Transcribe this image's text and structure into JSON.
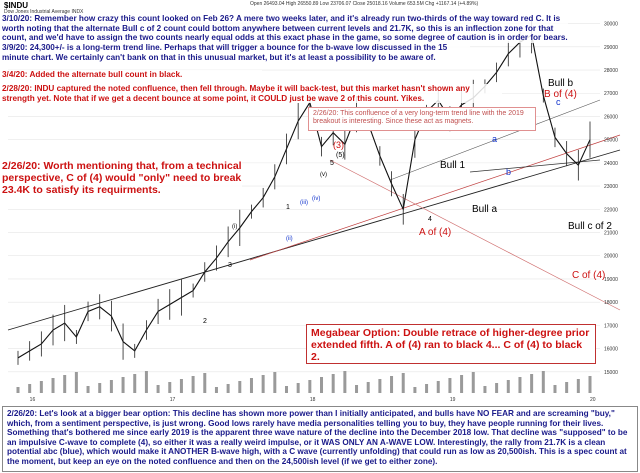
{
  "header": {
    "symbol": "$INDU",
    "subtitle": "Dow Jones Industrial Average INDX",
    "info": "Open 26493.04 High 26550.89 Low 23706.07 Close 25018.16 Volume 653.5M Chg +1167.14 (+4.89%)"
  },
  "notes": {
    "n1": "3/10/20: Remember how crazy this count looked on Feb 26? A mere two weeks later, and it's already run two-thirds of the way toward red C. It is worth noting that the alternate Bull c of 2 count could bottom anywhere between current levels and 21.7K, so this is an inflection zone for that count, and we'd have to assign the two counts nearly equal odds at this exact phase in the game, so some degree of caution is in order for bears.",
    "n2": "3/9/20: 24,300+/- is a long-term trend line. Perhaps that will trigger a bounce for the b-wave low discussed in the 15 minute chart. We certainly can't bank on that in this unusual market, but it's at least a possibility to be aware of.",
    "n3": "3/4/20: Added the alternate bull count in black.",
    "n4": "2/28/20: INDU captured the noted confluence, then fell through. Maybe it will back-test, but this market hasn't shown any strength yet. Note that if we get a decent bounce at some point, it COULD just be wave 2 of this count. Yikes.",
    "n5": "2/26/20: This confluence of a very long-term trend line with the 2019 breakout is interesting. Since these act as magnets.",
    "n6": "2/26/20: Worth mentioning that, from a technical perspective, C of (4) would \"only\" need to break 23.4K to satisfy its requirments.",
    "n7": "Megabear Option: Double retrace of higher-degree prior extended fifth. A of (4) ran to black 4... C of (4) to black 2.",
    "n8": "2/26/20: Let's look at a bigger bear option: This decline has shown more power than I initially anticipated, and bulls have NO FEAR and are screaming \"buy,\" which, from a sentiment perspective, is just wrong. Good lows rarely have media personalities telling you to buy, they have people running for their lives. Something that's bothered me since early 2019 is the apparent three wave nature of the decline into the December 2018 low. That decline was \"supposed\" to be an impulsive C-wave to complete (4), so either it was a really weird impulse, or it WAS ONLY AN A-WAVE LOW. Interestingly, the rally from 21.7K is a clean potential abc (blue), which would make it ANOTHER B-wave high, with a C wave (currently unfolding) that could run as low as 20,500ish. This is a spec count at the moment, but keep an eye on the noted confluence and then on the 24,500ish level (if we get to either zone)."
  },
  "labels": {
    "wave3": "(3)",
    "wave5": "(5)",
    "bull1": "Bull 1",
    "bulla": "Bull a",
    "bullb": "Bull b",
    "bullc2": "Bull c of 2",
    "bofa": "B of (4)",
    "aofa": "A of (4)",
    "cofa": "C of (4)",
    "blue_a": "a",
    "blue_b": "b",
    "blue_c": "c",
    "w1": "1",
    "w2": "2",
    "w3": "3",
    "w4": "4",
    "w5": "5",
    "i": "(i)",
    "ii": "(ii)",
    "iii": "(iii)",
    "iv": "(iv)",
    "v": "(v)"
  },
  "chart_data": {
    "type": "line",
    "series": [
      {
        "name": "$INDU",
        "values": [
          15600,
          15900,
          16200,
          16800,
          17100,
          16500,
          17600,
          17800,
          17400,
          16300,
          15900,
          16800,
          17600,
          17900,
          18200,
          18500,
          19300,
          19900,
          20600,
          21200,
          21900,
          22500,
          23400,
          24600,
          25800,
          26600,
          24700,
          25300,
          24800,
          26100,
          25700,
          24300,
          23100,
          22000,
          25000,
          26200,
          26700,
          25900,
          26500,
          26800,
          27300,
          27900,
          28700,
          29200,
          29500,
          26900,
          25100,
          24400,
          23900,
          25000
        ]
      }
    ],
    "ylim": [
      14000,
      30500
    ],
    "right_ticks": [
      "30000",
      "29000",
      "28000",
      "27000",
      "26000",
      "25000",
      "24000",
      "23000",
      "22000",
      "21000",
      "20000",
      "19000",
      "18000",
      "17000",
      "16000",
      "15000"
    ],
    "x_ticks": [
      "16",
      "17",
      "18",
      "19",
      "20"
    ],
    "grid": true
  },
  "colors": {
    "note_text": "#1a1a8a",
    "red": "#cc1111",
    "blue": "#1133cc",
    "price_bar": "#111111",
    "confluence": "#e07070"
  }
}
